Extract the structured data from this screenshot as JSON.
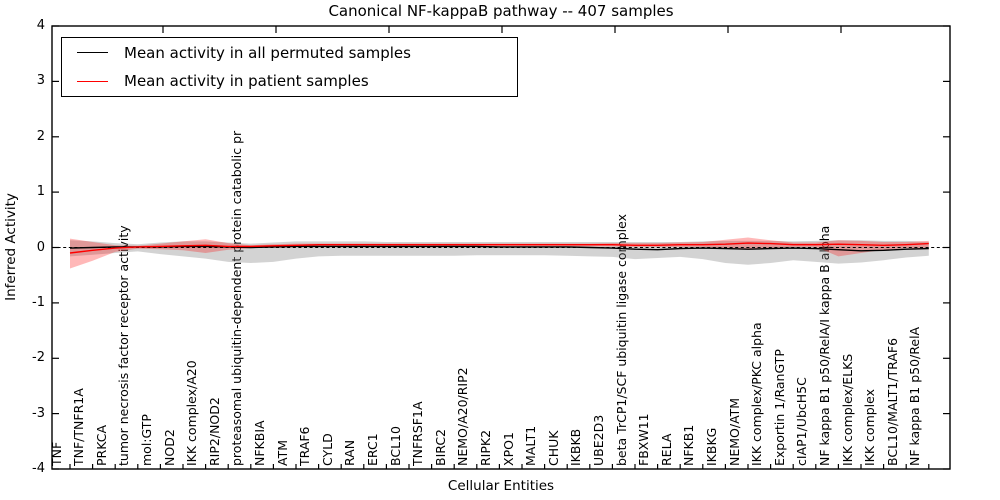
{
  "title": "Canonical NF-kappaB pathway -- 407 samples",
  "legend": {
    "entries": [
      {
        "label": "Mean activity in all permuted samples",
        "color": "#000000"
      },
      {
        "label": "Mean activity in patient samples",
        "color": "#ff0000"
      }
    ]
  },
  "chart_data": {
    "type": "line",
    "title": "Canonical NF-kappaB pathway -- 407 samples",
    "xlabel": "Cellular Entities",
    "ylabel": "Inferred Activity",
    "ylim": [
      -4,
      4
    ],
    "yticks": [
      4,
      3,
      2,
      1,
      0,
      -1,
      -2,
      -3,
      -4
    ],
    "grid": false,
    "legend_position": "upper left",
    "zero_line": {
      "style": "dashed",
      "color": "#000000",
      "y": 0
    },
    "categories": [
      "TNF",
      "TNF/TNFR1A",
      "PRKCA",
      "tumor necrosis factor receptor activity",
      "mol:GTP",
      "NOD2",
      "IKK complex/A20",
      "RIP2/NOD2",
      "proteasomal ubiquitin-dependent protein catabolic pr",
      "NFKBIA",
      "ATM",
      "TRAF6",
      "CYLD",
      "RAN",
      "ERC1",
      "BCL10",
      "TNFRSF1A",
      "BIRC2",
      "NEMO/A20/RIP2",
      "RIPK2",
      "XPO1",
      "MALT1",
      "CHUK",
      "IKBKB",
      "UBE2D3",
      "beta TrCP1/SCF ubiquitin ligase complex",
      "FBXW11",
      "RELA",
      "NFKB1",
      "IKBKG",
      "NEMO/ATM",
      "IKK complex/PKC alpha",
      "Exportin 1/RanGTP",
      "cIAP1/UbcH5C",
      "NF kappa B1 p50/RelA/I kappa B alpha",
      "IKK complex/ELKS",
      "IKK complex",
      "BCL10/MALT1/TRAF6",
      "NF kappa B1 p50/RelA"
    ],
    "series": [
      {
        "id": "permuted-mean-line",
        "name": "Mean activity in all permuted samples",
        "color": "#000000",
        "values": [
          -0.01,
          0.0,
          0.01,
          0.01,
          0.01,
          0.02,
          0.02,
          0.01,
          0.0,
          0.01,
          0.02,
          0.02,
          0.02,
          0.02,
          0.02,
          0.02,
          0.02,
          0.02,
          0.02,
          0.01,
          0.01,
          0.01,
          0.01,
          0.0,
          -0.01,
          -0.03,
          -0.04,
          -0.02,
          -0.01,
          -0.02,
          -0.03,
          -0.02,
          -0.01,
          -0.02,
          -0.04,
          -0.06,
          -0.05,
          -0.03,
          -0.02
        ]
      },
      {
        "id": "patient-mean-line",
        "name": "Mean activity in patient samples",
        "color": "#ff0000",
        "values": [
          -0.1,
          -0.05,
          -0.01,
          0.01,
          0.02,
          0.03,
          0.04,
          0.02,
          0.02,
          0.03,
          0.04,
          0.05,
          0.05,
          0.05,
          0.05,
          0.05,
          0.05,
          0.05,
          0.05,
          0.05,
          0.05,
          0.05,
          0.05,
          0.05,
          0.05,
          0.04,
          0.04,
          0.05,
          0.05,
          0.06,
          0.08,
          0.07,
          0.05,
          0.05,
          0.06,
          0.05,
          0.04,
          0.05,
          0.07
        ]
      }
    ],
    "bands": [
      {
        "name": "permuted-std-band",
        "color": "#808080",
        "alpha": 0.35,
        "upper": [
          0.13,
          0.11,
          0.08,
          0.06,
          0.09,
          0.11,
          0.11,
          0.09,
          0.07,
          0.09,
          0.11,
          0.11,
          0.11,
          0.11,
          0.1,
          0.1,
          0.1,
          0.1,
          0.1,
          0.1,
          0.1,
          0.1,
          0.1,
          0.1,
          0.1,
          0.1,
          0.1,
          0.1,
          0.11,
          0.12,
          0.12,
          0.12,
          0.11,
          0.12,
          0.13,
          0.13,
          0.12,
          0.12,
          0.1
        ],
        "lower": [
          -0.16,
          -0.13,
          -0.1,
          -0.07,
          -0.12,
          -0.16,
          -0.2,
          -0.26,
          -0.28,
          -0.26,
          -0.2,
          -0.16,
          -0.15,
          -0.15,
          -0.15,
          -0.15,
          -0.15,
          -0.15,
          -0.14,
          -0.14,
          -0.14,
          -0.14,
          -0.15,
          -0.16,
          -0.17,
          -0.21,
          -0.19,
          -0.17,
          -0.21,
          -0.28,
          -0.31,
          -0.28,
          -0.23,
          -0.26,
          -0.29,
          -0.27,
          -0.23,
          -0.18,
          -0.15
        ]
      },
      {
        "name": "patient-std-band",
        "color": "#ff0000",
        "alpha": 0.28,
        "upper": [
          0.16,
          0.1,
          0.04,
          0.03,
          0.07,
          0.11,
          0.15,
          0.08,
          0.04,
          0.06,
          0.07,
          0.07,
          0.07,
          0.07,
          0.07,
          0.07,
          0.07,
          0.07,
          0.07,
          0.07,
          0.07,
          0.07,
          0.07,
          0.07,
          0.08,
          0.08,
          0.08,
          0.09,
          0.1,
          0.14,
          0.18,
          0.13,
          0.09,
          0.09,
          0.13,
          0.12,
          0.1,
          0.1,
          0.12
        ],
        "lower": [
          -0.38,
          -0.24,
          -0.08,
          -0.02,
          -0.03,
          -0.05,
          -0.1,
          -0.04,
          -0.01,
          0.0,
          0.01,
          0.02,
          0.02,
          0.02,
          0.02,
          0.02,
          0.02,
          0.02,
          0.02,
          0.02,
          0.02,
          0.02,
          0.02,
          0.02,
          0.02,
          0.01,
          0.01,
          0.01,
          0.01,
          -0.01,
          -0.04,
          -0.01,
          0.01,
          0.01,
          -0.16,
          -0.1,
          -0.04,
          -0.01,
          -0.03
        ]
      }
    ]
  }
}
